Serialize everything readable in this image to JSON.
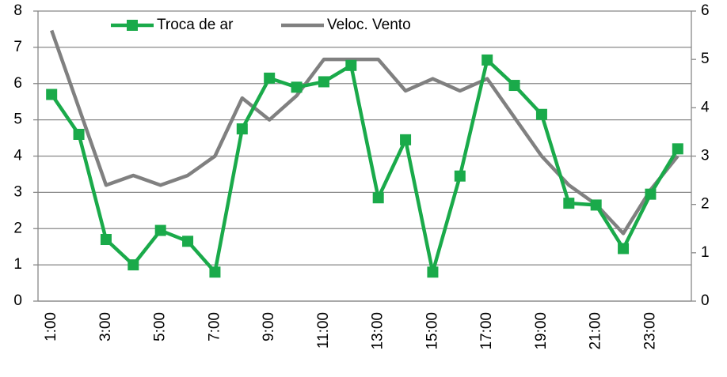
{
  "chart_data": {
    "type": "line",
    "categories": [
      "1:00",
      null,
      "3:00",
      null,
      "5:00",
      null,
      "7:00",
      null,
      "9:00",
      null,
      "11:00",
      null,
      "13:00",
      null,
      "15:00",
      null,
      "17:00",
      null,
      "19:00",
      null,
      "21:00",
      null,
      "23:00",
      null
    ],
    "series": [
      {
        "name": "Troca de ar",
        "color": "#1aaa4a",
        "marker": "square",
        "values": [
          5.7,
          4.6,
          1.7,
          1.0,
          1.95,
          1.65,
          0.8,
          4.75,
          6.15,
          5.9,
          6.05,
          6.5,
          2.85,
          4.45,
          0.8,
          3.45,
          6.65,
          5.95,
          5.15,
          2.7,
          2.65,
          1.45,
          2.95,
          4.2
        ]
      },
      {
        "name": "Veloc. Vento",
        "color": "#808080",
        "axis": "y2",
        "values": [
          5.6,
          4.0,
          2.4,
          2.6,
          2.4,
          2.6,
          3.0,
          4.2,
          3.75,
          4.25,
          5.0,
          5.0,
          5.0,
          4.35,
          4.6,
          4.35,
          4.6,
          3.8,
          3.0,
          2.4,
          2.0,
          1.4,
          2.3,
          3.0
        ]
      }
    ],
    "ylim": [
      0,
      8
    ],
    "yticks": [
      0,
      1,
      2,
      3,
      4,
      5,
      6,
      7,
      8
    ],
    "y2lim": [
      0,
      6
    ],
    "y2ticks": [
      0,
      1,
      2,
      3,
      4,
      5,
      6
    ],
    "grid": true,
    "legend": "top"
  }
}
